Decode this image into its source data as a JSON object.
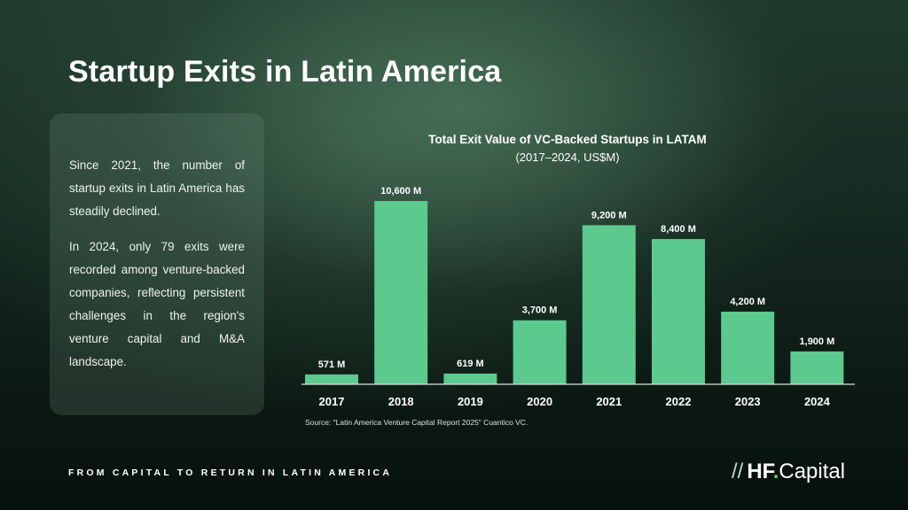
{
  "slide": {
    "title": "Startup Exits in Latin America",
    "paragraph1": "Since 2021, the number of startup exits in Latin America has steadily declined.",
    "paragraph2": "In 2024, only 79 exits were recorded among venture-backed companies, reflecting persistent challenges in the region's venture capital and M&A landscape.",
    "source": "Source: \"Latin America Venture Capital Report 2025\" Cuantico VC.",
    "footer": "FROM CAPITAL TO RETURN IN LATIN AMERICA",
    "brand": {
      "slashes": "//",
      "hf": "HF",
      "dot": ".",
      "capital": "Capital"
    }
  },
  "colors": {
    "bar": "#5cc98e",
    "axis": "#d9e3dc",
    "text": "#ffffff"
  },
  "chart_data": {
    "type": "bar",
    "title": "Total Exit Value of VC-Backed Startups in LATAM",
    "subtitle": "(2017–2024, US$M)",
    "categories": [
      "2017",
      "2018",
      "2019",
      "2020",
      "2021",
      "2022",
      "2023",
      "2024"
    ],
    "values": [
      571,
      10600,
      619,
      3700,
      9200,
      8400,
      4200,
      1900
    ],
    "data_labels": [
      "571 M",
      "10,600 M",
      "619 M",
      "3,700 M",
      "9,200 M",
      "8,400 M",
      "4,200 M",
      "1,900 M"
    ],
    "xlabel": "",
    "ylabel": "",
    "grid": false,
    "legend": "none"
  }
}
